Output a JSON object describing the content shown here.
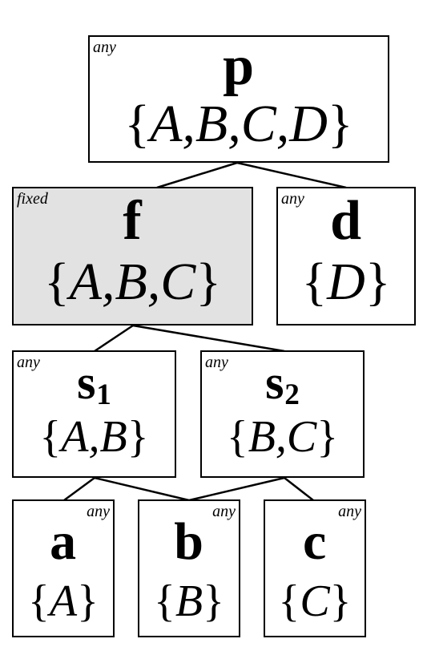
{
  "nodes": {
    "p": {
      "tag": "any",
      "name": "p",
      "sub": "",
      "set": "A,B,C,D"
    },
    "f": {
      "tag": "fixed",
      "name": "f",
      "sub": "",
      "set": "A,B,C"
    },
    "d": {
      "tag": "any",
      "name": "d",
      "sub": "",
      "set": "D"
    },
    "s1": {
      "tag": "any",
      "name": "s",
      "sub": "1",
      "set": "A,B"
    },
    "s2": {
      "tag": "any",
      "name": "s",
      "sub": "2",
      "set": "B,C"
    },
    "a": {
      "tag": "any",
      "name": "a",
      "sub": "",
      "set": "A"
    },
    "b": {
      "tag": "any",
      "name": "b",
      "sub": "",
      "set": "B"
    },
    "c": {
      "tag": "any",
      "name": "c",
      "sub": "",
      "set": "C"
    }
  },
  "colors": {
    "border": "#000000",
    "fixed_fill": "#e2e2e2",
    "default_fill": "#ffffff"
  },
  "edges": [
    [
      "p",
      "f"
    ],
    [
      "p",
      "d"
    ],
    [
      "f",
      "s1"
    ],
    [
      "f",
      "s2"
    ],
    [
      "s1",
      "a"
    ],
    [
      "s1",
      "b"
    ],
    [
      "s2",
      "b"
    ],
    [
      "s2",
      "c"
    ]
  ]
}
